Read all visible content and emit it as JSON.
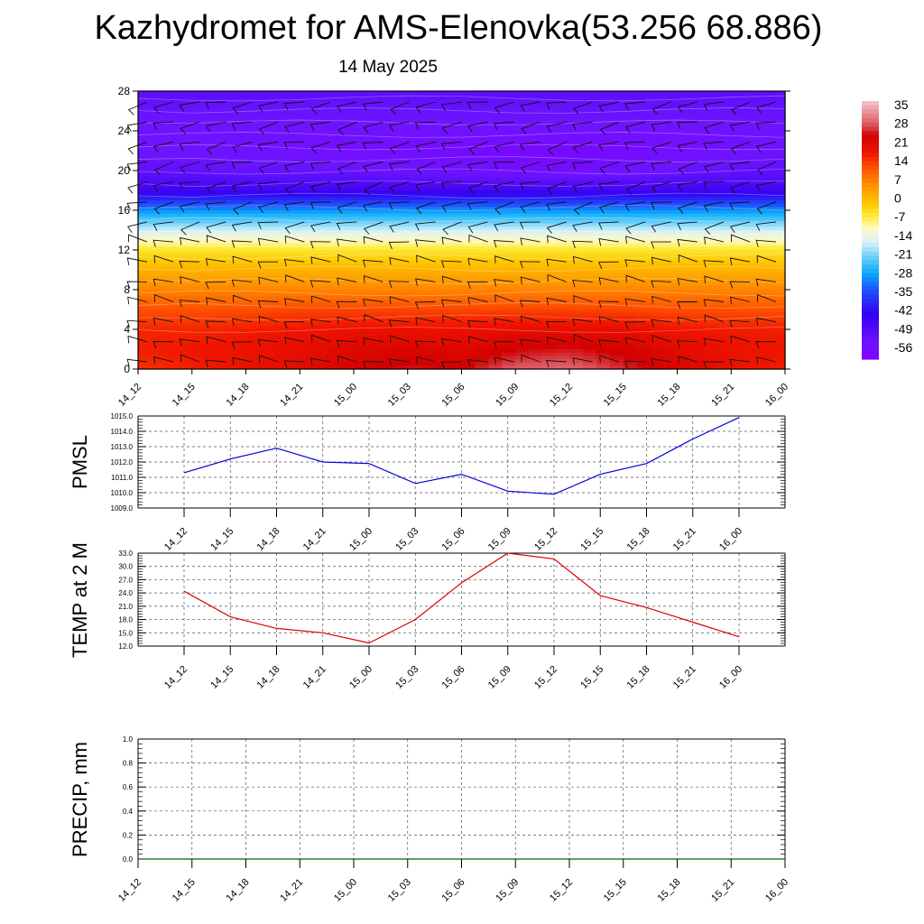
{
  "title": "Kazhydromet for AMS-Elenovka(53.256 68.886)",
  "subtitle": "14 May 2025",
  "chart_data": [
    {
      "type": "heatmap",
      "name": "vertical-profile",
      "x_ticks": [
        "14_12",
        "14_15",
        "14_18",
        "14_21",
        "15_00",
        "15_03",
        "15_06",
        "15_09",
        "15_12",
        "15_15",
        "15_18",
        "15_21",
        "16_00"
      ],
      "ylim": [
        0,
        28
      ],
      "y_ticks": [
        "0",
        "4",
        "8",
        "12",
        "16",
        "20",
        "24",
        "28"
      ],
      "y_levels": [
        0,
        2,
        4,
        6,
        8,
        10,
        12,
        14,
        16,
        18,
        20,
        22,
        24,
        26,
        28
      ],
      "values": [
        [
          18,
          20,
          22,
          24,
          27,
          29,
          28,
          33,
          34,
          30,
          26,
          22,
          20
        ],
        [
          20,
          21,
          22,
          23,
          25,
          26,
          25,
          28,
          29,
          27,
          24,
          22,
          21
        ],
        [
          19,
          19,
          20,
          21,
          22,
          22,
          22,
          23,
          23,
          23,
          21,
          20,
          20
        ],
        [
          15,
          15,
          15,
          16,
          16,
          16,
          16,
          16,
          16,
          16,
          15,
          15,
          15
        ],
        [
          9,
          9,
          9,
          9,
          9,
          9,
          9,
          9,
          9,
          9,
          9,
          9,
          9
        ],
        [
          3,
          3,
          3,
          3,
          3,
          3,
          3,
          3,
          3,
          3,
          3,
          3,
          3
        ],
        [
          -4,
          -4,
          -4,
          -4,
          -4,
          -4,
          -4,
          -4,
          -4,
          -4,
          -4,
          -4,
          -4
        ],
        [
          -16,
          -16,
          -16,
          -16,
          -16,
          -16,
          -16,
          -16,
          -16,
          -16,
          -16,
          -16,
          -16
        ],
        [
          -30,
          -30,
          -30,
          -30,
          -30,
          -30,
          -30,
          -30,
          -30,
          -30,
          -30,
          -30,
          -30
        ],
        [
          -48,
          -48,
          -48,
          -48,
          -48,
          -48,
          -48,
          -48,
          -48,
          -48,
          -48,
          -48,
          -48
        ],
        [
          -54,
          -54,
          -55,
          -55,
          -55,
          -56,
          -57,
          -58,
          -58,
          -57,
          -55,
          -54,
          -54
        ],
        [
          -56,
          -56,
          -57,
          -57,
          -58,
          -58,
          -59,
          -60,
          -60,
          -59,
          -58,
          -57,
          -56
        ],
        [
          -57,
          -57,
          -57,
          -57,
          -57,
          -57,
          -57,
          -57,
          -57,
          -57,
          -57,
          -57,
          -57
        ],
        [
          -55,
          -55,
          -55,
          -55,
          -55,
          -55,
          -55,
          -55,
          -55,
          -55,
          -55,
          -55,
          -55
        ],
        [
          -53,
          -53,
          -53,
          -53,
          -53,
          -53,
          -53,
          -53,
          -53,
          -53,
          -53,
          -53,
          -53
        ]
      ],
      "colorbar_labels": [
        "35",
        "28",
        "21",
        "14",
        "7",
        "0",
        "-7",
        "-14",
        "-21",
        "-28",
        "-35",
        "-42",
        "-49",
        "-56"
      ],
      "colorbar_range": [
        -63,
        42
      ]
    },
    {
      "type": "line",
      "name": "pmsl",
      "ylabel": "PMSL",
      "color": "#0000dd",
      "ylim": [
        1009.0,
        1015.0
      ],
      "y_ticks": [
        "1009.0",
        "1010.0",
        "1011.0",
        "1012.0",
        "1013.0",
        "1014.0",
        "1015.0"
      ],
      "x_ticks": [
        "14_12",
        "14_15",
        "14_18",
        "14_21",
        "15_00",
        "15_03",
        "15_06",
        "15_09",
        "15_12",
        "15_15",
        "15_18",
        "15_21",
        "16_00"
      ],
      "values": [
        1011.3,
        1012.2,
        1012.9,
        1012.0,
        1011.9,
        1010.6,
        1011.2,
        1010.1,
        1009.9,
        1011.2,
        1011.9,
        1013.5,
        1014.9
      ]
    },
    {
      "type": "line",
      "name": "temp-2m",
      "ylabel": "TEMP at 2 M",
      "color": "#dd0000",
      "ylim": [
        12.0,
        33.0
      ],
      "y_ticks": [
        "12.0",
        "15.0",
        "18.0",
        "21.0",
        "24.0",
        "27.0",
        "30.0",
        "33.0"
      ],
      "x_ticks": [
        "14_12",
        "14_15",
        "14_18",
        "14_21",
        "15_00",
        "15_03",
        "15_06",
        "15_09",
        "15_12",
        "15_15",
        "15_18",
        "15_21",
        "16_00"
      ],
      "values": [
        24.4,
        18.6,
        16.0,
        15.0,
        12.7,
        18.0,
        26.3,
        33.0,
        31.7,
        23.4,
        20.7,
        17.4,
        14.1
      ]
    },
    {
      "type": "line",
      "name": "precip",
      "ylabel": "PRECIP, mm",
      "color": "#006600",
      "ylim": [
        0.0,
        1.0
      ],
      "y_ticks": [
        "0.0",
        "0.2",
        "0.4",
        "0.6",
        "0.8",
        "1.0"
      ],
      "x_ticks": [
        "14_12",
        "14_15",
        "14_18",
        "14_21",
        "15_00",
        "15_03",
        "15_06",
        "15_09",
        "15_12",
        "15_15",
        "15_18",
        "15_21",
        "16_00"
      ],
      "values": [
        0,
        0,
        0,
        0,
        0,
        0,
        0,
        0,
        0,
        0,
        0,
        0,
        0
      ]
    }
  ]
}
